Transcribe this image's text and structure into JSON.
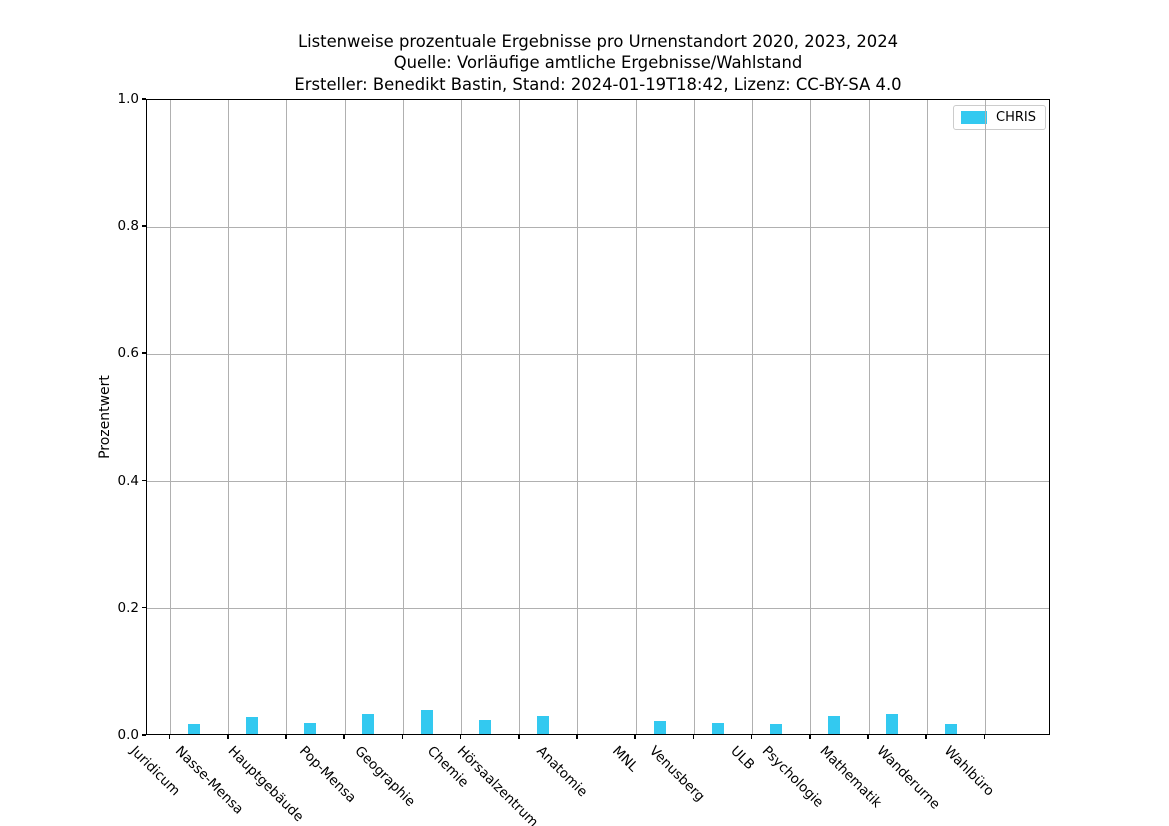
{
  "figure": {
    "title_lines": [
      "Listenweise prozentuale Ergebnisse pro Urnenstandort 2020, 2023, 2024",
      "Quelle: Vorläufige amtliche Ergebnisse/Wahlstand",
      "Ersteller: Benedikt Bastin, Stand: 2024-01-19T18:42, Lizenz: CC-BY-SA 4.0"
    ]
  },
  "chart_data": {
    "type": "bar",
    "title": "Listenweise prozentuale Ergebnisse pro Urnenstandort 2020, 2023, 2024\nQuelle: Vorläufige amtliche Ergebnisse/Wahlstand\nErsteller: Benedikt Bastin, Stand: 2024-01-19T18:42, Lizenz: CC-BY-SA 4.0",
    "xlabel": "",
    "ylabel": "Prozentwert",
    "ylim": [
      0.0,
      1.0
    ],
    "yticks": [
      0.0,
      0.2,
      0.4,
      0.6,
      0.8,
      1.0
    ],
    "ytick_labels": [
      "0.0",
      "0.2",
      "0.4",
      "0.6",
      "0.8",
      "1.0"
    ],
    "grid": true,
    "legend_position": "upper right",
    "categories": [
      "Juridicum",
      "Nasse-Mensa",
      "Hauptgebäude",
      "Pop-Mensa",
      "Geographie",
      "Chemie",
      "Hörsaalzentrum",
      "Anatomie",
      "MNL",
      "Venusberg",
      "ULB",
      "Psychologie",
      "Mathematik",
      "Wanderurne",
      "Wahlbüro"
    ],
    "series": [
      {
        "name": "CHRIS",
        "color": "#33c9f0",
        "values": [
          0.015,
          0.027,
          0.017,
          0.031,
          0.038,
          0.022,
          0.029,
          0.0,
          0.02,
          0.017,
          0.016,
          0.029,
          0.031,
          0.016,
          0.0
        ]
      }
    ],
    "legend": {
      "entries": [
        {
          "label": "CHRIS",
          "color": "#33c9f0"
        }
      ]
    }
  },
  "colors": {
    "bar": "#33c9f0",
    "grid": "#b0b0b0",
    "axis": "#000000",
    "background": "#ffffff",
    "legend_border": "#cccccc"
  }
}
